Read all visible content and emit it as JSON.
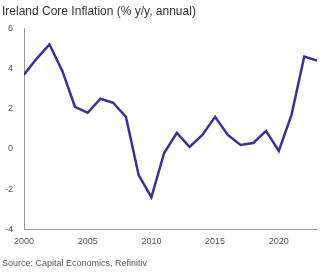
{
  "chart_data": {
    "type": "line",
    "title": "Ireland Core Inflation (% y/y, annual)",
    "source": "Source: Capital Economics, Refinitiv",
    "x": [
      2000,
      2001,
      2002,
      2003,
      2004,
      2005,
      2006,
      2007,
      2008,
      2009,
      2010,
      2011,
      2012,
      2013,
      2014,
      2015,
      2016,
      2017,
      2018,
      2019,
      2020,
      2021,
      2022,
      2023
    ],
    "values": [
      3.7,
      4.5,
      5.2,
      3.9,
      2.1,
      1.8,
      2.5,
      2.3,
      1.6,
      -1.3,
      -2.4,
      -0.2,
      0.8,
      0.1,
      0.7,
      1.6,
      0.7,
      0.2,
      0.3,
      0.9,
      -0.1,
      1.7,
      4.6,
      4.4
    ],
    "color": "#3b2f9e",
    "xlim": [
      2000,
      2023
    ],
    "xticks": [
      2000,
      2005,
      2010,
      2015,
      2020
    ],
    "ylim": [
      -4,
      6
    ],
    "yticks": [
      -4,
      -2,
      0,
      2,
      4,
      6
    ],
    "grid": false
  }
}
